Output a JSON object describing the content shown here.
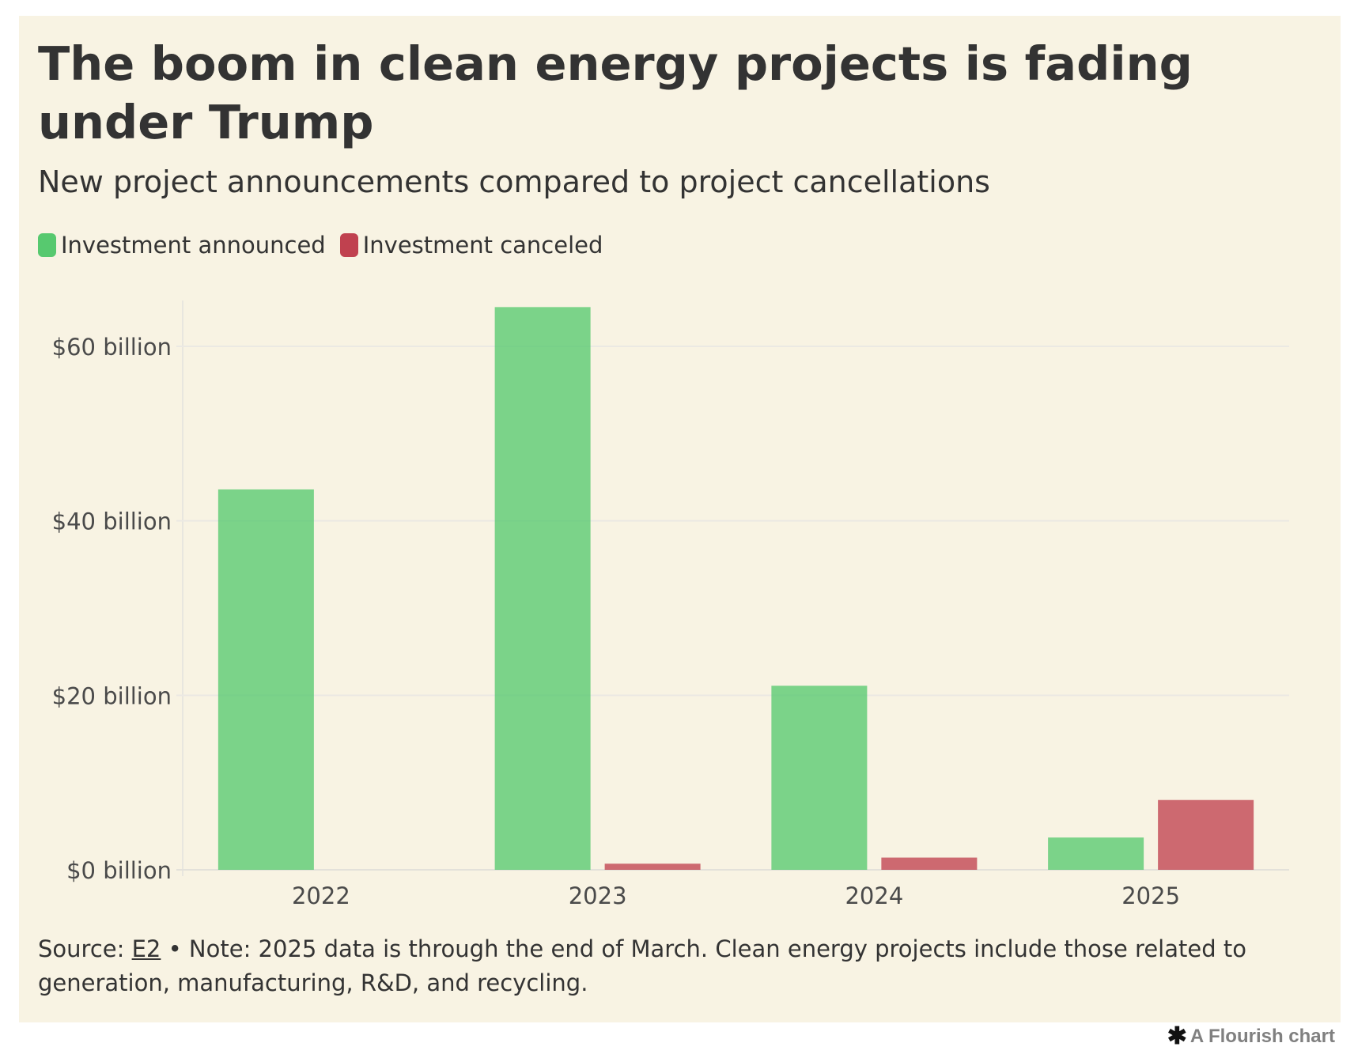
{
  "chart_data": {
    "type": "bar",
    "title": "The boom in clean energy projects is fading under Trump",
    "subtitle": "New project announcements compared to project cancellations",
    "categories": [
      "2022",
      "2023",
      "2024",
      "2025"
    ],
    "series": [
      {
        "name": "Investment announced",
        "color": "#57c96f",
        "values": [
          43.6,
          64.5,
          21.1,
          3.7
        ]
      },
      {
        "name": "Investment canceled",
        "color": "#c0414f",
        "values": [
          0,
          0.7,
          1.4,
          8.0
        ]
      }
    ],
    "y_ticks": [
      {
        "value": 0,
        "label": "$0 billion"
      },
      {
        "value": 20,
        "label": "$20 billion"
      },
      {
        "value": 40,
        "label": "$40 billion"
      },
      {
        "value": 60,
        "label": "$60 billion"
      }
    ],
    "ylim": [
      0,
      65
    ],
    "grid": true,
    "legend_position": "top-left"
  },
  "footnote": {
    "source_prefix": "Source: ",
    "source_link": "E2",
    "note": " • Note: 2025 data is through the end of March. Clean energy projects include those related to generation, manufacturing, R&D, and recycling."
  },
  "credit": {
    "icon": "asterisk-icon",
    "text": "A Flourish chart"
  }
}
